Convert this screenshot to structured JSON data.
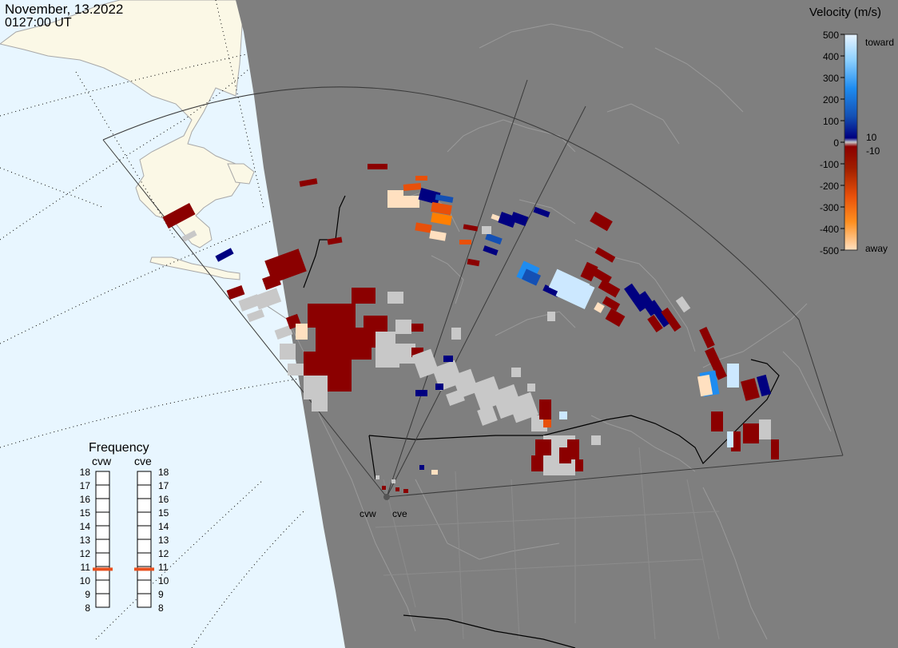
{
  "header": {
    "date": "November, 13.2022",
    "time": "0127:00 UT"
  },
  "colorbar": {
    "title": "Velocity (m/s)",
    "ticks": [
      "500",
      "400",
      "300",
      "200",
      "100",
      "0",
      "-100",
      "-200",
      "-300",
      "-400",
      "-500"
    ],
    "toward_label": "toward",
    "away_label": "away",
    "threshold_pos": "10",
    "threshold_neg": "-10",
    "colors": {
      "toward_max": "#e8f4ff",
      "toward_mid": "#1e8cf0",
      "toward_min": "#000080",
      "ground_scatter": "#c8c8c8",
      "away_min": "#8b0000",
      "away_mid": "#ff7f00",
      "away_max": "#ffe0c0"
    }
  },
  "frequency": {
    "title": "Frequency",
    "radars": [
      {
        "name": "cvw",
        "value": 10.8
      },
      {
        "name": "cve",
        "value": 10.8
      }
    ],
    "scale": [
      "18",
      "17",
      "16",
      "15",
      "14",
      "13",
      "12",
      "11",
      "10",
      "9",
      "8"
    ],
    "indicator_color": "#e8501e"
  },
  "map": {
    "radar_labels": [
      "cvw",
      "cve"
    ],
    "colors": {
      "night": "#7f7f7f",
      "ocean_day": "#e8f6ff",
      "land_day": "#fbf8e6",
      "border": "#000000",
      "coast": "#a8a8a8"
    }
  }
}
